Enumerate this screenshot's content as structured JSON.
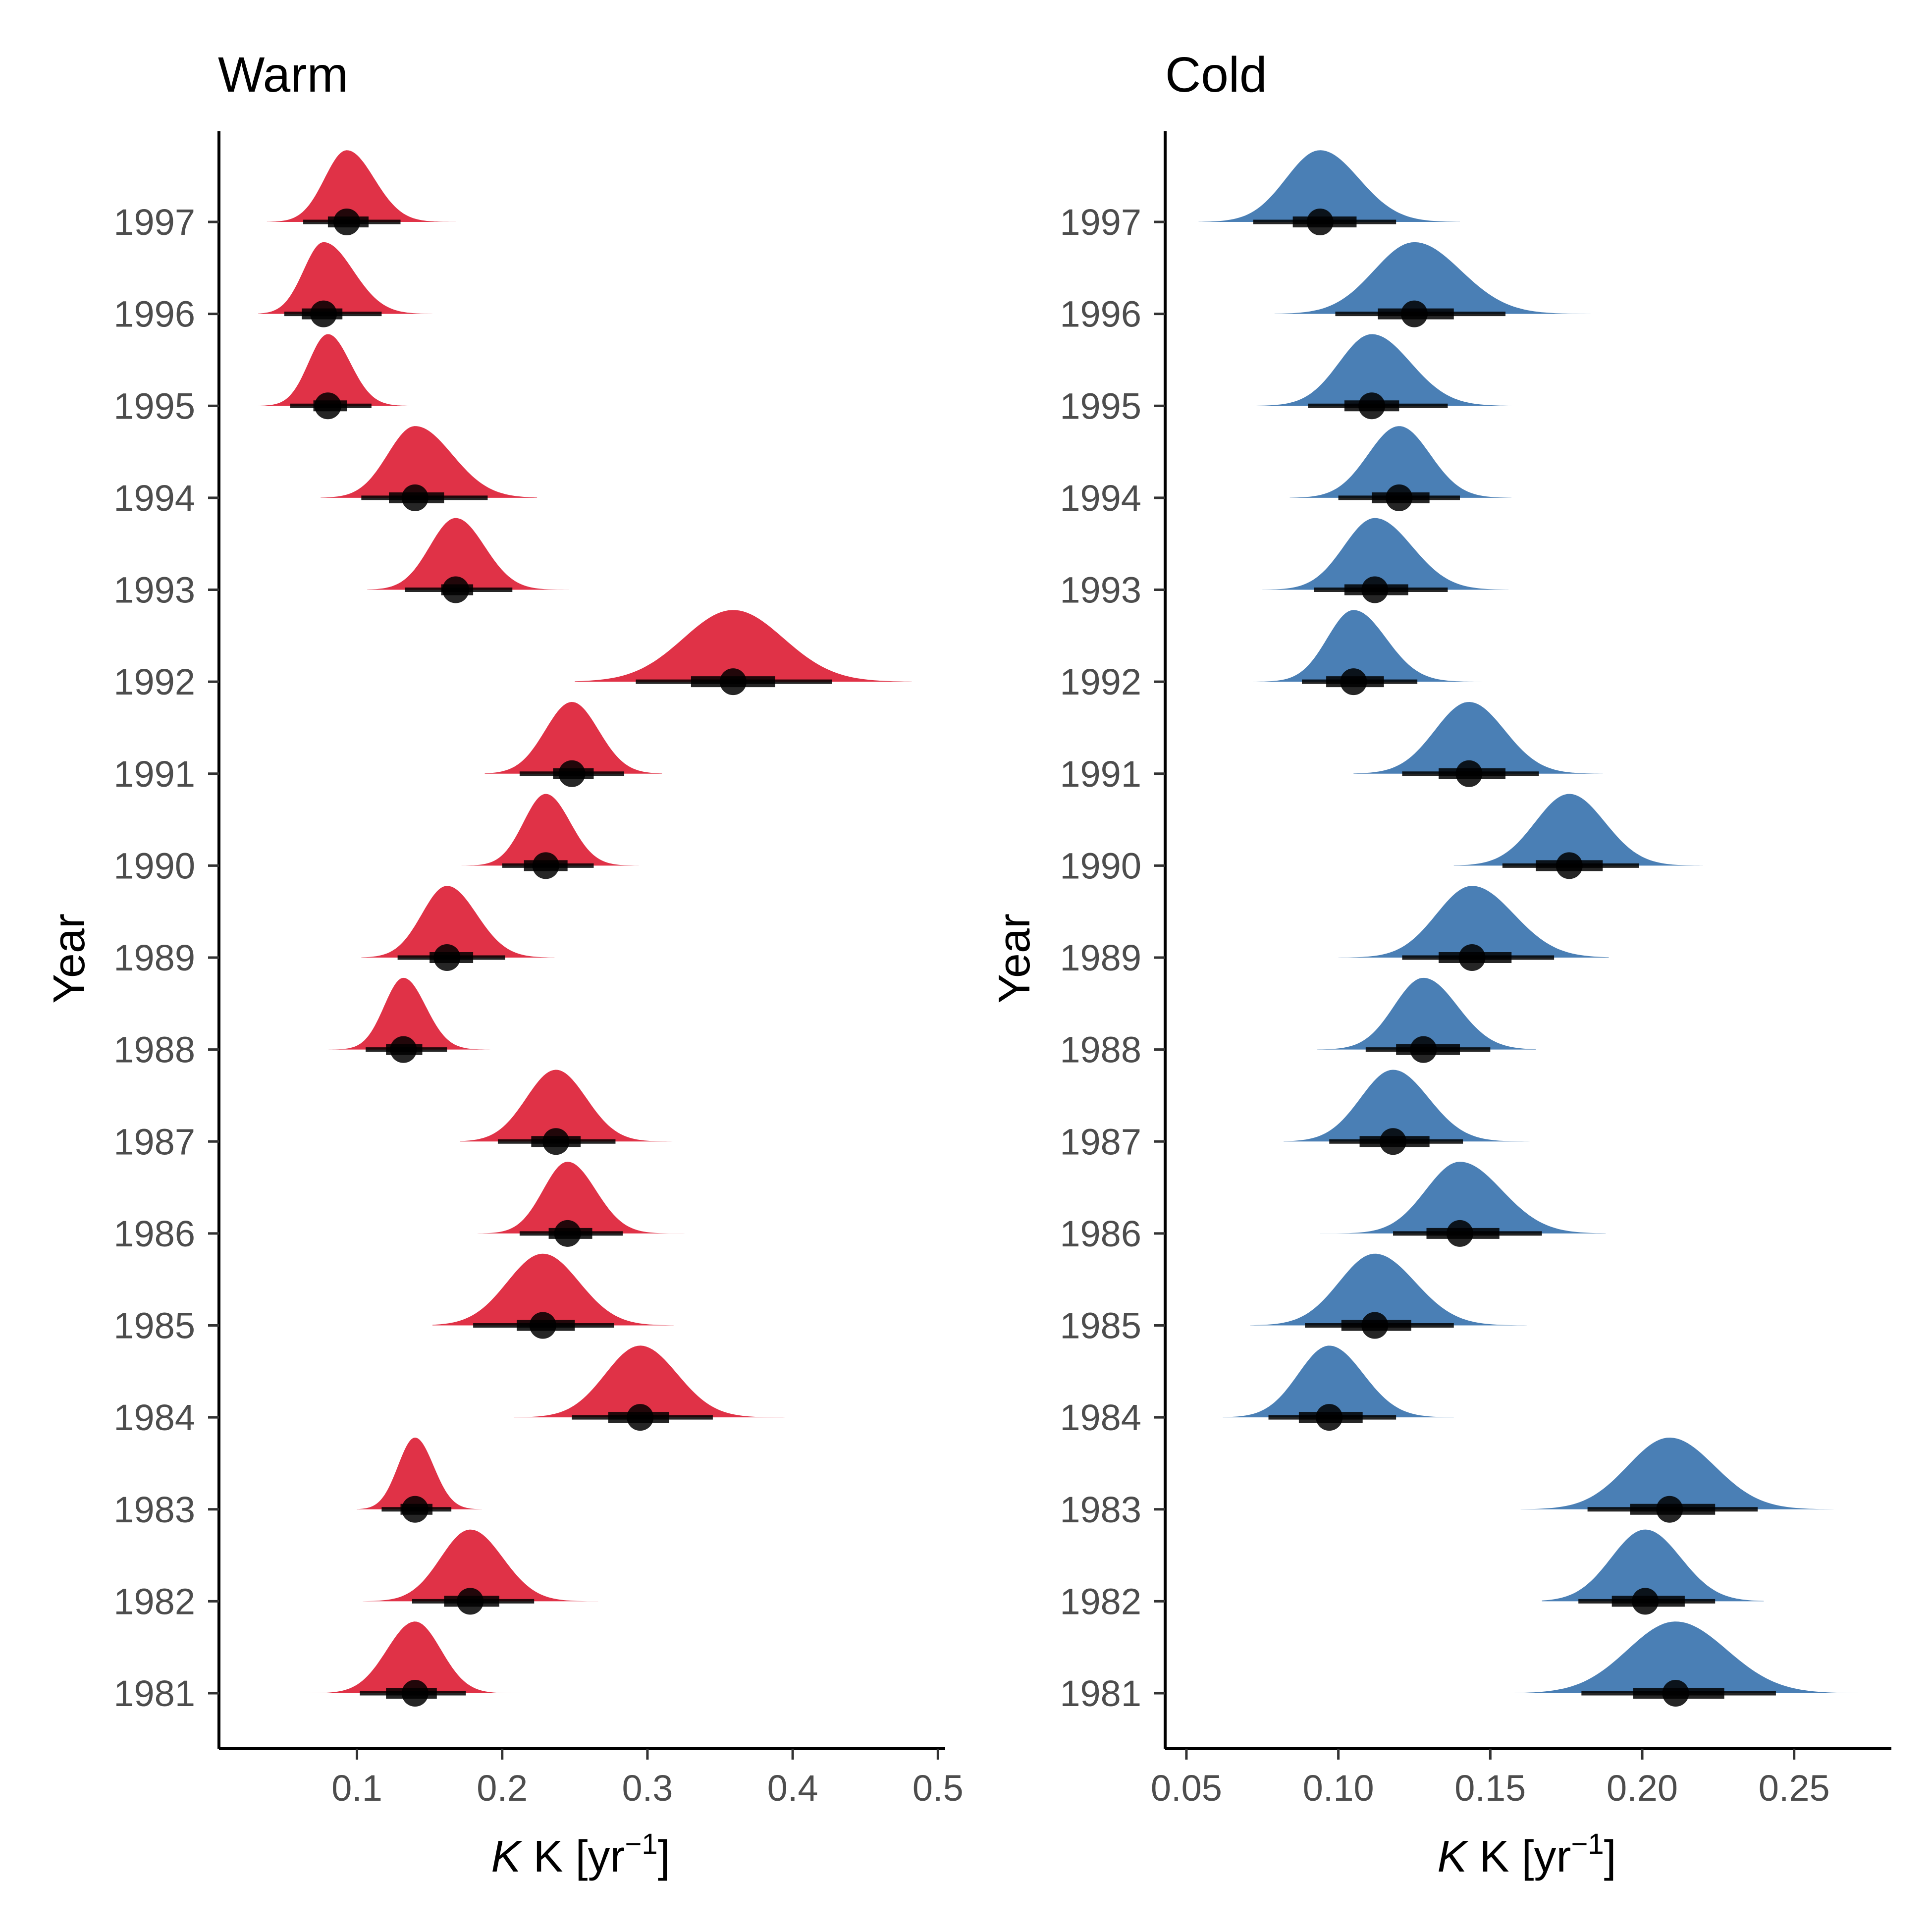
{
  "chart_data": [
    {
      "type": "halfeye",
      "title": "Warm",
      "xlabel": "K [yr",
      "xlabel_sup": "−1",
      "xlabel_close": "]",
      "ylabel": "Year",
      "color": "#E03247",
      "xlim": [
        0.005,
        0.505
      ],
      "xticks": [
        0.1,
        0.2,
        0.3,
        0.4,
        0.5
      ],
      "xtick_labels": [
        "0.1",
        "0.2",
        "0.3",
        "0.4",
        "0.5"
      ],
      "categories": [
        "1981",
        "1982",
        "1983",
        "1984",
        "1985",
        "1986",
        "1987",
        "1988",
        "1989",
        "1990",
        "1991",
        "1992",
        "1993",
        "1994",
        "1995",
        "1996",
        "1997"
      ],
      "median": [
        0.14,
        0.178,
        0.14,
        0.295,
        0.228,
        0.245,
        0.237,
        0.132,
        0.162,
        0.23,
        0.248,
        0.359,
        0.168,
        0.14,
        0.08,
        0.077,
        0.093
      ],
      "ci66": [
        [
          0.12,
          0.155
        ],
        [
          0.16,
          0.198
        ],
        [
          0.13,
          0.152
        ],
        [
          0.273,
          0.315
        ],
        [
          0.21,
          0.25
        ],
        [
          0.232,
          0.262
        ],
        [
          0.22,
          0.254
        ],
        [
          0.12,
          0.145
        ],
        [
          0.15,
          0.18
        ],
        [
          0.215,
          0.245
        ],
        [
          0.235,
          0.263
        ],
        [
          0.33,
          0.388
        ],
        [
          0.158,
          0.18
        ],
        [
          0.122,
          0.16
        ],
        [
          0.07,
          0.093
        ],
        [
          0.062,
          0.09
        ],
        [
          0.08,
          0.108
        ]
      ],
      "ci95": [
        [
          0.102,
          0.175
        ],
        [
          0.138,
          0.222
        ],
        [
          0.117,
          0.165
        ],
        [
          0.248,
          0.345
        ],
        [
          0.18,
          0.277
        ],
        [
          0.212,
          0.283
        ],
        [
          0.197,
          0.278
        ],
        [
          0.106,
          0.162
        ],
        [
          0.128,
          0.202
        ],
        [
          0.2,
          0.263
        ],
        [
          0.212,
          0.284
        ],
        [
          0.292,
          0.427
        ],
        [
          0.133,
          0.207
        ],
        [
          0.103,
          0.19
        ],
        [
          0.054,
          0.11
        ],
        [
          0.05,
          0.117
        ],
        [
          0.063,
          0.13
        ]
      ],
      "density_range": [
        [
          0.062,
          0.232
        ],
        [
          0.104,
          0.266
        ],
        [
          0.1,
          0.186
        ],
        [
          0.208,
          0.395
        ],
        [
          0.152,
          0.318
        ],
        [
          0.183,
          0.326
        ],
        [
          0.171,
          0.319
        ],
        [
          0.08,
          0.192
        ],
        [
          0.103,
          0.236
        ],
        [
          0.172,
          0.294
        ],
        [
          0.188,
          0.31
        ],
        [
          0.25,
          0.482
        ],
        [
          0.107,
          0.246
        ],
        [
          0.075,
          0.224
        ],
        [
          0.032,
          0.136
        ],
        [
          0.032,
          0.152
        ],
        [
          0.038,
          0.168
        ]
      ]
    },
    {
      "type": "halfeye",
      "title": "Cold",
      "xlabel": "K [yr",
      "xlabel_sup": "−1",
      "xlabel_close": "]",
      "ylabel": "Year",
      "color": "#4A7FB5",
      "xlim": [
        0.043,
        0.282
      ],
      "xticks": [
        0.05,
        0.1,
        0.15,
        0.2,
        0.25
      ],
      "xtick_labels": [
        "0.05",
        "0.10",
        "0.15",
        "0.20",
        "0.25"
      ],
      "categories": [
        "1981",
        "1982",
        "1983",
        "1984",
        "1985",
        "1986",
        "1987",
        "1988",
        "1989",
        "1990",
        "1991",
        "1992",
        "1993",
        "1994",
        "1995",
        "1996",
        "1997"
      ],
      "median": [
        0.211,
        0.201,
        0.209,
        0.097,
        0.112,
        0.14,
        0.118,
        0.128,
        0.144,
        0.176,
        0.143,
        0.105,
        0.112,
        0.12,
        0.111,
        0.125,
        0.094
      ],
      "ci66": [
        [
          0.197,
          0.227
        ],
        [
          0.19,
          0.214
        ],
        [
          0.196,
          0.224
        ],
        [
          0.087,
          0.108
        ],
        [
          0.101,
          0.124
        ],
        [
          0.129,
          0.153
        ],
        [
          0.107,
          0.13
        ],
        [
          0.119,
          0.14
        ],
        [
          0.133,
          0.157
        ],
        [
          0.165,
          0.187
        ],
        [
          0.133,
          0.155
        ],
        [
          0.096,
          0.115
        ],
        [
          0.102,
          0.123
        ],
        [
          0.111,
          0.13
        ],
        [
          0.102,
          0.12
        ],
        [
          0.113,
          0.138
        ],
        [
          0.085,
          0.106
        ]
      ],
      "ci95": [
        [
          0.18,
          0.244
        ],
        [
          0.179,
          0.224
        ],
        [
          0.182,
          0.238
        ],
        [
          0.077,
          0.119
        ],
        [
          0.089,
          0.138
        ],
        [
          0.118,
          0.167
        ],
        [
          0.097,
          0.141
        ],
        [
          0.109,
          0.15
        ],
        [
          0.121,
          0.171
        ],
        [
          0.154,
          0.199
        ],
        [
          0.121,
          0.166
        ],
        [
          0.088,
          0.126
        ],
        [
          0.092,
          0.136
        ],
        [
          0.1,
          0.14
        ],
        [
          0.09,
          0.136
        ],
        [
          0.099,
          0.155
        ],
        [
          0.072,
          0.119
        ]
      ],
      "density_range": [
        [
          0.158,
          0.271
        ],
        [
          0.167,
          0.24
        ],
        [
          0.16,
          0.263
        ],
        [
          0.062,
          0.138
        ],
        [
          0.071,
          0.162
        ],
        [
          0.094,
          0.188
        ],
        [
          0.082,
          0.165
        ],
        [
          0.093,
          0.165
        ],
        [
          0.1,
          0.189
        ],
        [
          0.138,
          0.22
        ],
        [
          0.105,
          0.187
        ],
        [
          0.072,
          0.15
        ],
        [
          0.075,
          0.156
        ],
        [
          0.084,
          0.157
        ],
        [
          0.073,
          0.157
        ],
        [
          0.079,
          0.183
        ],
        [
          0.054,
          0.14
        ]
      ]
    }
  ]
}
